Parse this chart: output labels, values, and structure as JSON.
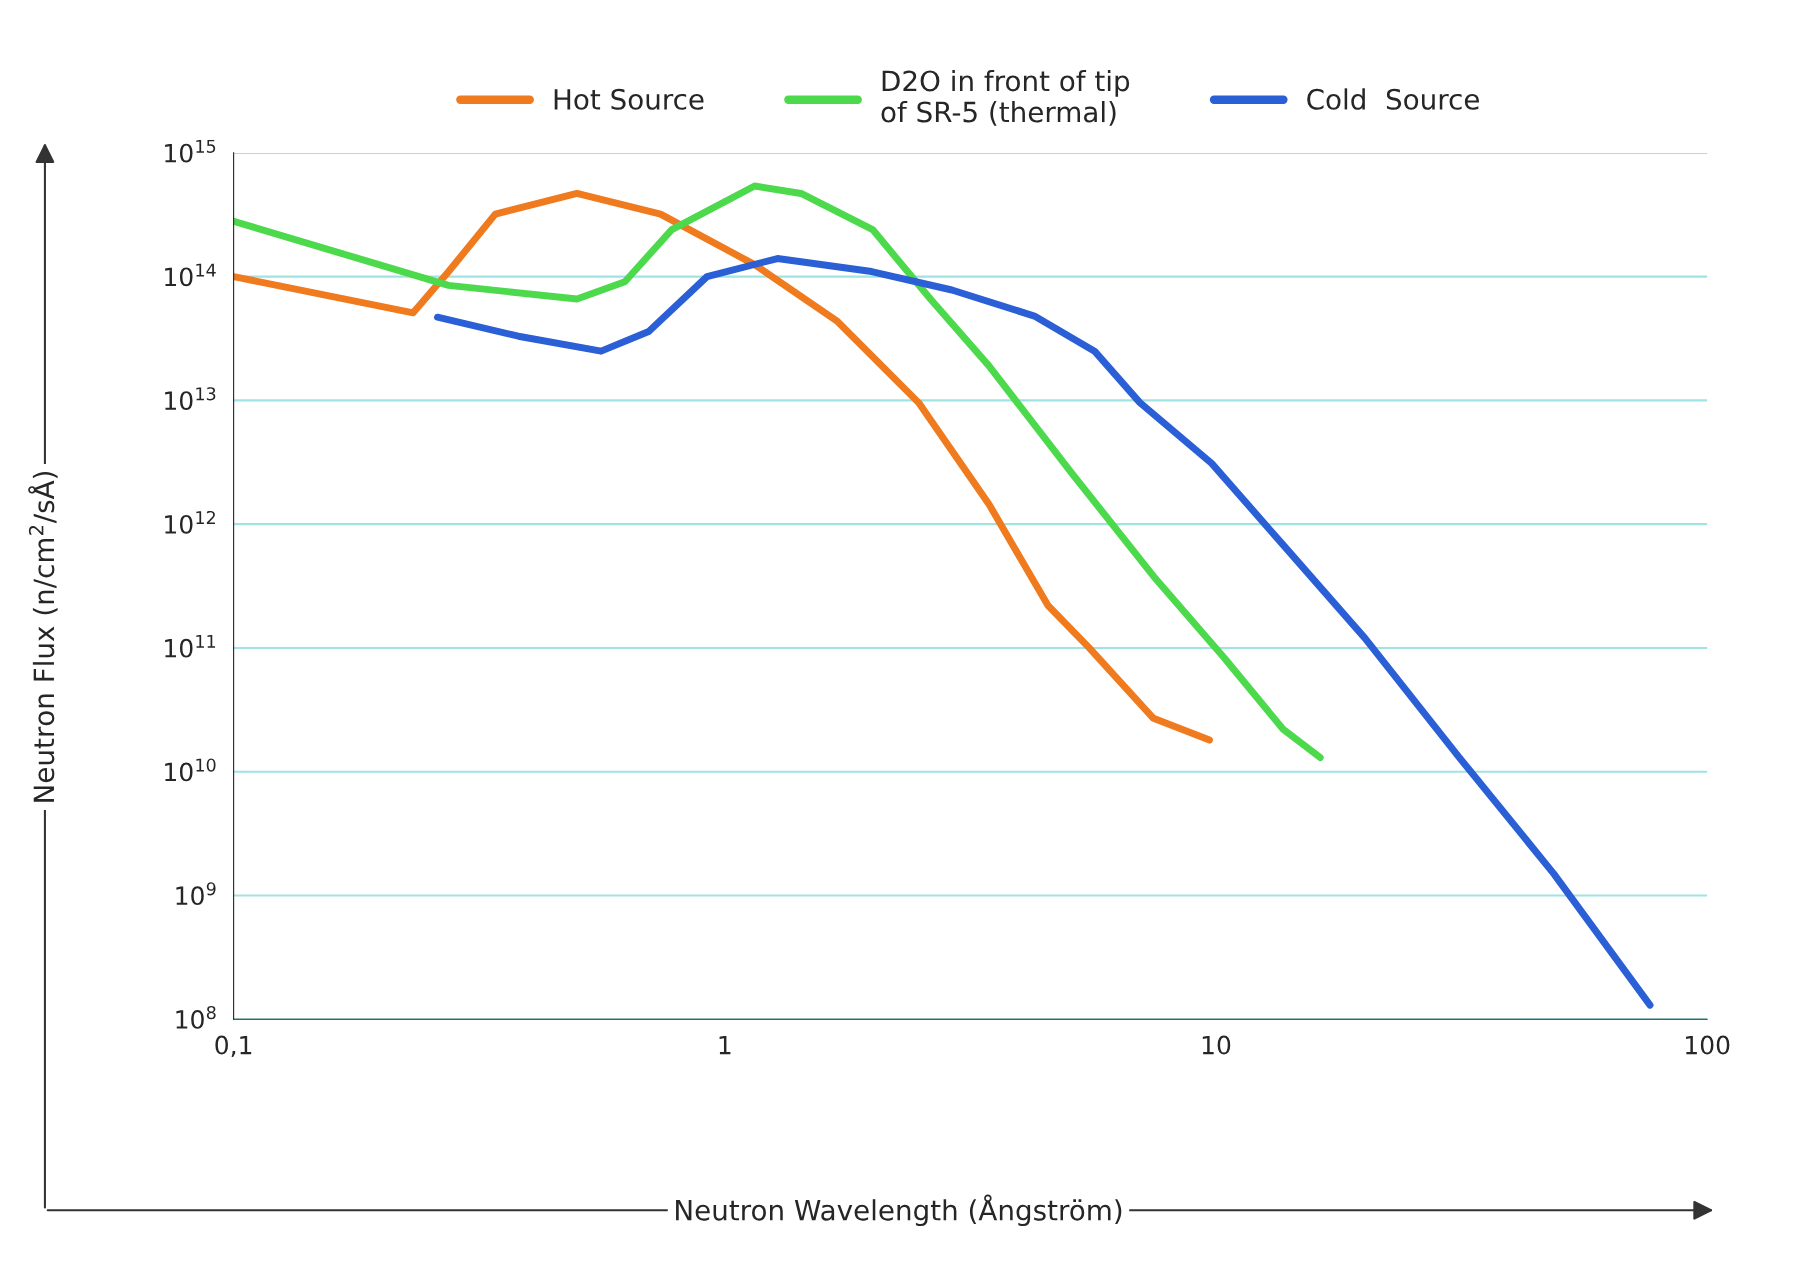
{
  "chart_data": {
    "type": "line",
    "xlabel": "Neutron Wavelength (Ångström)",
    "ylabel": "Neutron Flux (n/cm$^{2}$/sÅ)",
    "log": "xy",
    "grid": "y",
    "legend": "top",
    "line_style": "solid",
    "marker": "none",
    "xlim": [
      0.1,
      100
    ],
    "ylim": [
      100000000.0,
      1000000000000000.0
    ],
    "xticks": [
      {
        "value": 0.1,
        "label": "0,1"
      },
      1,
      10,
      100
    ],
    "yticks": [
      {
        "value": 100000000.0,
        "label": "10$^{8}$"
      },
      {
        "value": 1000000000.0,
        "label": "10$^{9}$"
      },
      {
        "value": 10000000000.0,
        "label": "10$^{10}$"
      },
      {
        "value": 100000000000.0,
        "label": "10$^{11}$"
      },
      {
        "value": 1000000000000.0,
        "label": "10$^{12}$"
      },
      {
        "value": 10000000000000.0,
        "label": "10$^{13}$"
      },
      {
        "value": 100000000000000.0,
        "label": "10$^{14}$"
      },
      {
        "value": 1000000000000000.0,
        "label": "10$^{15}$"
      }
    ],
    "series": [
      {
        "name": "Hot Source",
        "color": "#f07a1e",
        "x": [
          0.1,
          0.232,
          0.274,
          0.341,
          0.5,
          0.74,
          1.15,
          1.69,
          2.48,
          3.45,
          4.55,
          5.52,
          7.46,
          9.7
        ],
        "values": [
          100000000000000.0,
          51000000000000.0,
          110000000000000.0,
          320000000000000.0,
          470000000000000.0,
          320000000000000.0,
          125000000000000.0,
          44000000000000.0,
          9600000000000.0,
          1450000000000.0,
          220000000000.0,
          100000000000.0,
          27000000000.0,
          18000000000.0
        ]
      },
      {
        "name": "D2O in front of tip\nof SR-5 (thermal)",
        "color": "#4cd94c",
        "x": [
          0.1,
          0.274,
          0.5,
          0.626,
          0.78,
          1.15,
          1.43,
          2.0,
          2.63,
          3.45,
          5.08,
          7.46,
          10.4,
          13.7,
          16.3
        ],
        "values": [
          280000000000000.0,
          85000000000000.0,
          66000000000000.0,
          91000000000000.0,
          240000000000000.0,
          540000000000000.0,
          470000000000000.0,
          240000000000000.0,
          65000000000000.0,
          19000000000000.0,
          2600000000000.0,
          380000000000.0,
          83000000000.0,
          22000000000.0,
          13000000000.0
        ]
      },
      {
        "name": "Cold  Source",
        "color": "#2a5fd6",
        "x": [
          0.26,
          0.38,
          0.56,
          0.7,
          0.92,
          1.28,
          1.99,
          2.9,
          4.27,
          5.66,
          7.0,
          9.8,
          13.7,
          20.1,
          31.3,
          48.7,
          76.5
        ],
        "values": [
          47000000000000.0,
          33000000000000.0,
          25000000000000.0,
          36000000000000.0,
          100000000000000.0,
          140000000000000.0,
          110000000000000.0,
          78000000000000.0,
          48000000000000.0,
          25000000000000.0,
          9600000000000.0,
          3100000000000.0,
          680000000000.0,
          120000000000.0,
          13000000000.0,
          1500000000.0,
          130000000.0
        ]
      }
    ]
  }
}
